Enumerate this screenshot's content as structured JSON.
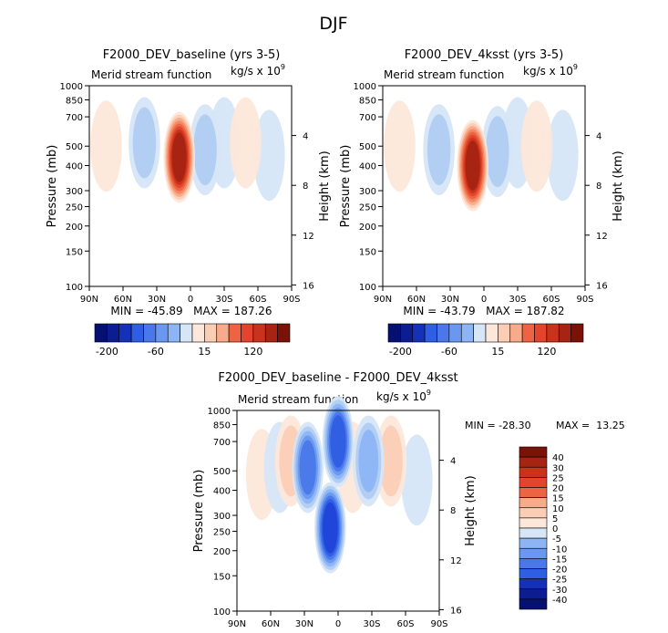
{
  "figure": {
    "title": "DJF",
    "panel_subtitle": "Merid stream function",
    "units_prefix": "kg/s x 10",
    "units_exponent": "9"
  },
  "colormap": {
    "blues": [
      "#ffffff",
      "#d6e6f7",
      "#b0cdf2",
      "#8db5f5",
      "#6a98f0",
      "#4a78ea",
      "#2e5ee4",
      "#1f45d8",
      "#1531b8",
      "#0b1d90",
      "#051070"
    ],
    "reds": [
      "#ffffff",
      "#fde7da",
      "#fbcdb5",
      "#f7ab8a",
      "#f38760",
      "#ec6442",
      "#e2452b",
      "#c9331c",
      "#a52412",
      "#7a1208"
    ]
  },
  "chart_data": [
    {
      "type": "contour",
      "id": "baseline",
      "title": "F2000_DEV_baseline (yrs 3-5)",
      "subtitle": "Merid stream function",
      "ylabel": "Pressure (mb)",
      "ylabel_right": "Height (km)",
      "xlim": [
        90,
        -90
      ],
      "x_ticks": [
        90,
        60,
        30,
        0,
        -30,
        -60,
        -90
      ],
      "x_tick_labels": [
        "90N",
        "60N",
        "30N",
        "0",
        "30S",
        "60S",
        "90S"
      ],
      "ylim": [
        1000,
        100
      ],
      "y_ticks": [
        100,
        150,
        200,
        250,
        300,
        400,
        500,
        700,
        850,
        1000
      ],
      "height_ticks": [
        16,
        12,
        8,
        4
      ],
      "stats": "MIN = -45.89   MAX = 187.26",
      "colorbar_ticks": [
        "-200",
        "-60",
        "15",
        "120"
      ],
      "colorbar_ticks_units": [
        -200,
        -60,
        15,
        120
      ],
      "levels": [
        -200,
        -150,
        -120,
        -90,
        -60,
        -40,
        -15,
        0,
        15,
        40,
        60,
        90,
        120,
        150,
        200
      ],
      "cells": [
        {
          "lat": 75,
          "p": 500,
          "value": 4
        },
        {
          "lat": 41,
          "p": 520,
          "value": -34
        },
        {
          "lat": 10,
          "p": 440,
          "value": 178
        },
        {
          "lat": -13,
          "p": 480,
          "value": -42
        },
        {
          "lat": -30,
          "p": 520,
          "value": -8
        },
        {
          "lat": -49,
          "p": 520,
          "value": 30
        },
        {
          "lat": -70,
          "p": 450,
          "value": -5
        }
      ]
    },
    {
      "type": "contour",
      "id": "4ksst",
      "title": "F2000_DEV_4ksst (yrs 3-5)",
      "subtitle": "Merid stream function",
      "ylabel": "Pressure (mb)",
      "ylabel_right": "Height (km)",
      "xlim": [
        90,
        -90
      ],
      "x_ticks": [
        90,
        60,
        30,
        0,
        -30,
        -60,
        -90
      ],
      "x_tick_labels": [
        "90N",
        "60N",
        "30N",
        "0",
        "30S",
        "60S",
        "90S"
      ],
      "ylim": [
        1000,
        100
      ],
      "y_ticks": [
        100,
        150,
        200,
        250,
        300,
        400,
        500,
        700,
        850,
        1000
      ],
      "height_ticks": [
        16,
        12,
        8,
        4
      ],
      "stats": "MIN = -43.79   MAX = 187.82",
      "colorbar_ticks": [
        "-200",
        "-60",
        "15",
        "120"
      ],
      "colorbar_ticks_units": [
        -200,
        -60,
        15,
        120
      ],
      "levels": [
        -200,
        -150,
        -120,
        -90,
        -60,
        -40,
        -15,
        0,
        15,
        40,
        60,
        90,
        120,
        150,
        200
      ],
      "cells": [
        {
          "lat": 75,
          "p": 500,
          "value": 4
        },
        {
          "lat": 40,
          "p": 480,
          "value": -36
        },
        {
          "lat": 10,
          "p": 400,
          "value": 180
        },
        {
          "lat": -12,
          "p": 470,
          "value": -40
        },
        {
          "lat": -30,
          "p": 520,
          "value": -6
        },
        {
          "lat": -47,
          "p": 500,
          "value": 25
        },
        {
          "lat": -70,
          "p": 450,
          "value": -5
        }
      ]
    },
    {
      "type": "contour",
      "id": "difference",
      "title": "F2000_DEV_baseline - F2000_DEV_4ksst",
      "subtitle": "Merid stream function",
      "ylabel": "Pressure (mb)",
      "ylabel_right": "Height (km)",
      "xlim": [
        90,
        -90
      ],
      "x_ticks": [
        90,
        60,
        30,
        0,
        -30,
        -60,
        -90
      ],
      "x_tick_labels": [
        "90N",
        "60N",
        "30N",
        "0",
        "30S",
        "60S",
        "90S"
      ],
      "ylim": [
        1000,
        100
      ],
      "y_ticks": [
        100,
        150,
        200,
        250,
        300,
        400,
        500,
        700,
        850,
        1000
      ],
      "height_ticks": [
        16,
        12,
        8,
        4
      ],
      "stats_min": "MIN = -28.30",
      "stats_max": "MAX =  13.25",
      "colorbar_ticks": [
        "40",
        "30",
        "25",
        "20",
        "15",
        "10",
        "5",
        "0",
        "-5",
        "-10",
        "-15",
        "-20",
        "-25",
        "-30",
        "-40"
      ],
      "levels": [
        -40,
        -30,
        -25,
        -20,
        -15,
        -10,
        -5,
        0,
        5,
        10,
        15,
        20,
        25,
        30,
        40
      ],
      "cells": [
        {
          "lat": 68,
          "p": 480,
          "value": 3
        },
        {
          "lat": 52,
          "p": 520,
          "value": -4
        },
        {
          "lat": 42,
          "p": 560,
          "value": 9
        },
        {
          "lat": 27,
          "p": 520,
          "value": -18
        },
        {
          "lat": 7,
          "p": 260,
          "value": -28
        },
        {
          "lat": 0,
          "p": 700,
          "value": -24
        },
        {
          "lat": -13,
          "p": 520,
          "value": 6
        },
        {
          "lat": -27,
          "p": 560,
          "value": -12
        },
        {
          "lat": -47,
          "p": 560,
          "value": 8
        },
        {
          "lat": -70,
          "p": 450,
          "value": -3
        }
      ]
    }
  ]
}
